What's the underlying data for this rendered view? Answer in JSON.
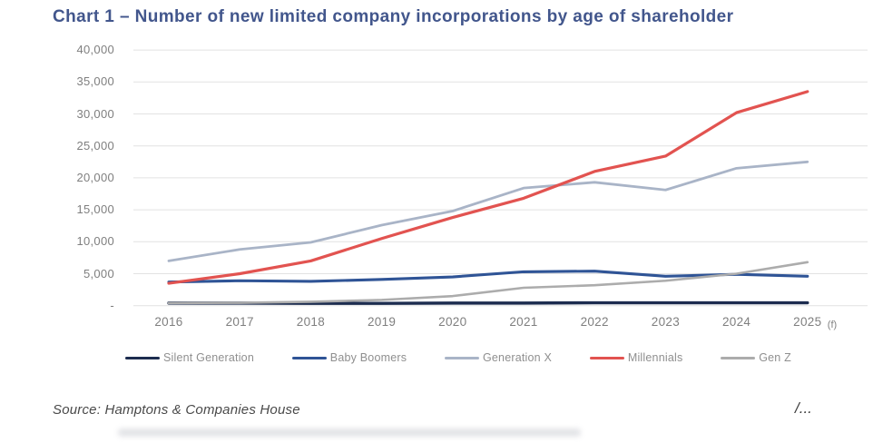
{
  "title": "Chart 1 – Number of new limited company incorporations by age of shareholder",
  "source": {
    "label": "Source: Hamptons & Companies House",
    "page_marker": "/..."
  },
  "colors": {
    "title": "#42568C",
    "gridline": "#E2E2E2",
    "tick_text": "#7F7F7F",
    "legend_text": "#8F8F8F"
  },
  "chart_data": {
    "type": "line",
    "title": "Chart 1 – Number of new limited company incorporations by age of shareholder",
    "xlabel": "",
    "ylabel": "",
    "x_tick_labels": [
      "2016",
      "2017",
      "2018",
      "2019",
      "2020",
      "2021",
      "2022",
      "2023",
      "2024",
      "2025"
    ],
    "forecast_suffix": "(f)",
    "y_ticks": [
      0,
      5000,
      10000,
      15000,
      20000,
      25000,
      30000,
      35000,
      40000
    ],
    "y_tick_labels": [
      "-",
      "5,000",
      "10,000",
      "15,000",
      "20,000",
      "25,000",
      "30,000",
      "35,000",
      "40,000"
    ],
    "ylim": [
      0,
      40000
    ],
    "grid": "horizontal",
    "legend_position": "bottom",
    "series": [
      {
        "name": "Silent Generation",
        "color": "#1C2C4F",
        "values": [
          400,
          400,
          350,
          350,
          400,
          400,
          450,
          450,
          450,
          450
        ]
      },
      {
        "name": "Baby Boomers",
        "color": "#2F5496",
        "values": [
          3700,
          3900,
          3800,
          4100,
          4500,
          5300,
          5400,
          4600,
          4900,
          4600
        ]
      },
      {
        "name": "Generation X",
        "color": "#A9B4C7",
        "values": [
          7000,
          8800,
          9900,
          12600,
          14800,
          18400,
          19300,
          18100,
          21500,
          22500
        ]
      },
      {
        "name": "Millennials",
        "color": "#E25350",
        "values": [
          3500,
          5000,
          7000,
          10500,
          13800,
          16800,
          21000,
          23400,
          30200,
          33500
        ]
      },
      {
        "name": "Gen Z",
        "color": "#ACACAC",
        "values": [
          400,
          450,
          600,
          900,
          1500,
          2800,
          3200,
          3900,
          5000,
          6800
        ]
      }
    ]
  }
}
